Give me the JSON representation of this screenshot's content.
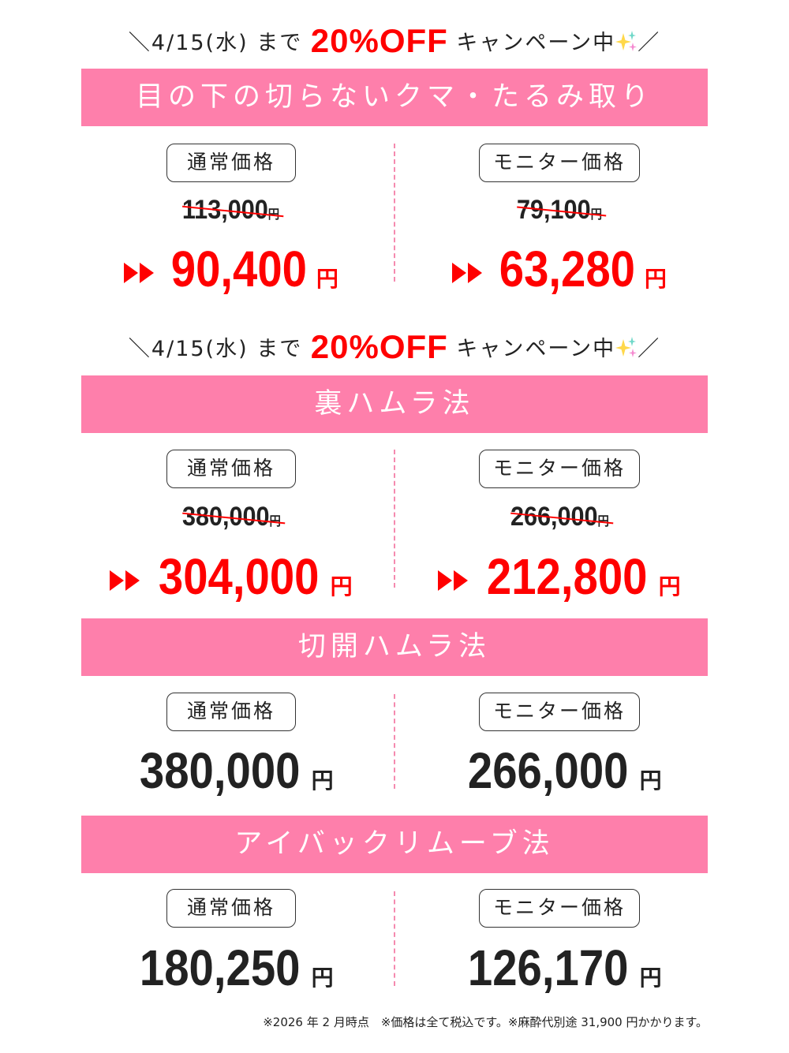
{
  "campaign": {
    "prefix": "＼4/15(水) まで ",
    "highlight": "20%OFF",
    "suffix": " キャンペーン中",
    "end": "／",
    "sparkle_icon": "sparkles-icon"
  },
  "colors": {
    "accent_pink": "#fe7fab",
    "sale_red": "#ff0000"
  },
  "sections": [
    {
      "title": "目の下の切らないクマ・たるみ取り",
      "regular_label": "通常価格",
      "monitor_label": "モニター価格",
      "regular_old": "113,000",
      "regular_price": "90,400",
      "monitor_old": "79,100",
      "monitor_price": "63,280",
      "yen": "円"
    },
    {
      "title": "裏ハムラ法",
      "regular_label": "通常価格",
      "monitor_label": "モニター価格",
      "regular_old": "380,000",
      "regular_price": "304,000",
      "monitor_old": "266,000",
      "monitor_price": "212,800",
      "yen": "円"
    },
    {
      "title": "切開ハムラ法",
      "regular_label": "通常価格",
      "monitor_label": "モニター価格",
      "regular_price": "380,000",
      "monitor_price": "266,000",
      "yen": "円"
    },
    {
      "title": "アイバックリムーブ法",
      "regular_label": "通常価格",
      "monitor_label": "モニター価格",
      "regular_price": "180,250",
      "monitor_price": "126,170",
      "yen": "円"
    }
  ],
  "footnote": "※2026 年 2 月時点　※価格は全て税込です。※麻酔代別途 31,900 円かかります。"
}
